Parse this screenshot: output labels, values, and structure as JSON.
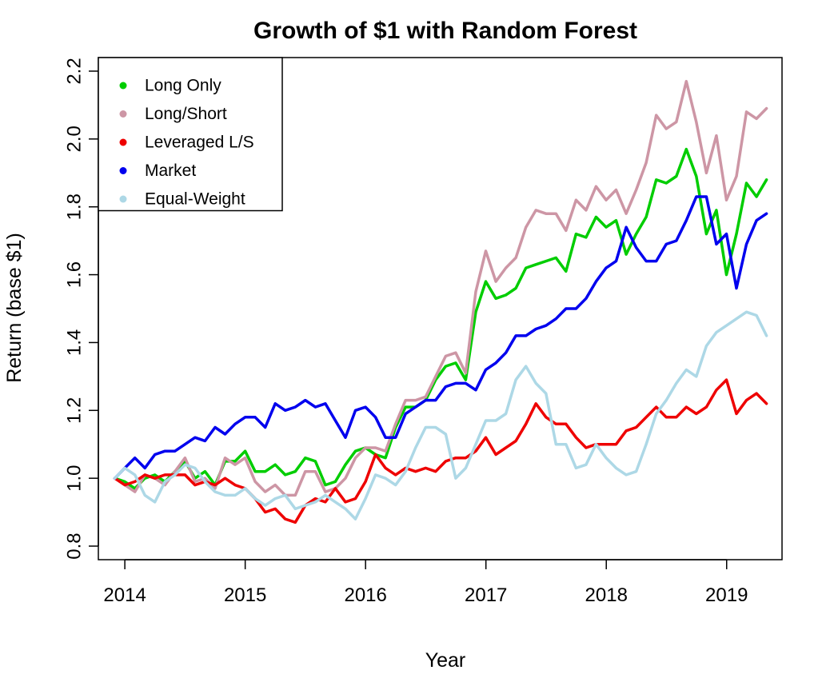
{
  "chart_data": {
    "type": "line",
    "title": "Growth of $1 with Random Forest",
    "xlabel": "Year",
    "ylabel": "Return (base $1)",
    "xlim": [
      2013.78,
      2019.46
    ],
    "ylim": [
      0.76,
      2.24
    ],
    "x_ticks": [
      2014,
      2015,
      2016,
      2017,
      2018,
      2019
    ],
    "x_tick_labels": [
      "2014",
      "2015",
      "2016",
      "2017",
      "2018",
      "2019"
    ],
    "y_ticks": [
      0.8,
      1.0,
      1.2,
      1.4,
      1.6,
      1.8,
      2.0,
      2.2
    ],
    "y_tick_labels": [
      "0.8",
      "1.0",
      "1.2",
      "1.4",
      "1.6",
      "1.8",
      "2.0",
      "2.2"
    ],
    "grid": false,
    "legend_position": "top-left",
    "x_start": 2013.9167,
    "x_step": 0.0833,
    "series": [
      {
        "name": "Long Only",
        "color": "#00cd00",
        "values": [
          1.0,
          0.99,
          0.97,
          1.0,
          1.01,
          0.99,
          1.02,
          1.05,
          1.0,
          1.02,
          0.98,
          1.05,
          1.05,
          1.08,
          1.02,
          1.02,
          1.04,
          1.01,
          1.02,
          1.06,
          1.05,
          0.98,
          0.99,
          1.04,
          1.08,
          1.09,
          1.07,
          1.06,
          1.15,
          1.21,
          1.21,
          1.23,
          1.29,
          1.33,
          1.34,
          1.29,
          1.49,
          1.58,
          1.53,
          1.54,
          1.56,
          1.62,
          1.63,
          1.64,
          1.65,
          1.61,
          1.72,
          1.71,
          1.77,
          1.74,
          1.76,
          1.66,
          1.72,
          1.77,
          1.88,
          1.87,
          1.89,
          1.97,
          1.89,
          1.72,
          1.79,
          1.6,
          1.72,
          1.87,
          1.83,
          1.88
        ]
      },
      {
        "name": "Long/Short",
        "color": "#cd96a5",
        "values": [
          1.0,
          0.98,
          0.96,
          1.01,
          1.0,
          0.98,
          1.02,
          1.06,
          0.99,
          1.0,
          0.97,
          1.06,
          1.04,
          1.06,
          0.99,
          0.96,
          0.98,
          0.95,
          0.95,
          1.02,
          1.02,
          0.96,
          0.97,
          1.0,
          1.06,
          1.09,
          1.09,
          1.08,
          1.16,
          1.23,
          1.23,
          1.24,
          1.3,
          1.36,
          1.37,
          1.31,
          1.55,
          1.67,
          1.58,
          1.62,
          1.65,
          1.74,
          1.79,
          1.78,
          1.78,
          1.73,
          1.82,
          1.79,
          1.86,
          1.82,
          1.85,
          1.78,
          1.85,
          1.93,
          2.07,
          2.03,
          2.05,
          2.17,
          2.05,
          1.9,
          2.01,
          1.82,
          1.89,
          2.08,
          2.06,
          2.09
        ]
      },
      {
        "name": "Leveraged L/S",
        "color": "#ee0000",
        "values": [
          1.0,
          0.98,
          0.99,
          1.01,
          1.0,
          1.01,
          1.01,
          1.01,
          0.98,
          0.99,
          0.98,
          1.0,
          0.98,
          0.97,
          0.94,
          0.9,
          0.91,
          0.88,
          0.87,
          0.92,
          0.94,
          0.93,
          0.97,
          0.93,
          0.94,
          0.99,
          1.07,
          1.03,
          1.01,
          1.03,
          1.02,
          1.03,
          1.02,
          1.05,
          1.06,
          1.06,
          1.08,
          1.12,
          1.07,
          1.09,
          1.11,
          1.16,
          1.22,
          1.18,
          1.16,
          1.16,
          1.12,
          1.09,
          1.1,
          1.1,
          1.1,
          1.14,
          1.15,
          1.18,
          1.21,
          1.18,
          1.18,
          1.21,
          1.19,
          1.21,
          1.26,
          1.29,
          1.19,
          1.23,
          1.25,
          1.22
        ]
      },
      {
        "name": "Market",
        "color": "#0000ee",
        "values": [
          1.0,
          1.03,
          1.06,
          1.03,
          1.07,
          1.08,
          1.08,
          1.1,
          1.12,
          1.11,
          1.15,
          1.13,
          1.16,
          1.18,
          1.18,
          1.15,
          1.22,
          1.2,
          1.21,
          1.23,
          1.21,
          1.22,
          1.17,
          1.12,
          1.2,
          1.21,
          1.18,
          1.12,
          1.12,
          1.19,
          1.21,
          1.23,
          1.23,
          1.27,
          1.28,
          1.28,
          1.26,
          1.32,
          1.34,
          1.37,
          1.42,
          1.42,
          1.44,
          1.45,
          1.47,
          1.5,
          1.5,
          1.53,
          1.58,
          1.62,
          1.64,
          1.74,
          1.68,
          1.64,
          1.64,
          1.69,
          1.7,
          1.76,
          1.83,
          1.83,
          1.69,
          1.72,
          1.56,
          1.69,
          1.76,
          1.78
        ]
      },
      {
        "name": "Equal-Weight",
        "color": "#add8e6",
        "values": [
          1.0,
          1.03,
          1.01,
          0.95,
          0.93,
          0.99,
          1.01,
          1.04,
          1.03,
          0.99,
          0.96,
          0.95,
          0.95,
          0.97,
          0.94,
          0.92,
          0.94,
          0.95,
          0.91,
          0.92,
          0.93,
          0.95,
          0.93,
          0.91,
          0.88,
          0.94,
          1.01,
          1.0,
          0.98,
          1.02,
          1.09,
          1.15,
          1.15,
          1.13,
          1.0,
          1.03,
          1.1,
          1.17,
          1.17,
          1.19,
          1.29,
          1.33,
          1.28,
          1.25,
          1.1,
          1.1,
          1.03,
          1.04,
          1.1,
          1.06,
          1.03,
          1.01,
          1.02,
          1.1,
          1.19,
          1.23,
          1.28,
          1.32,
          1.3,
          1.39,
          1.43,
          1.45,
          1.47,
          1.49,
          1.48,
          1.42
        ]
      }
    ]
  }
}
